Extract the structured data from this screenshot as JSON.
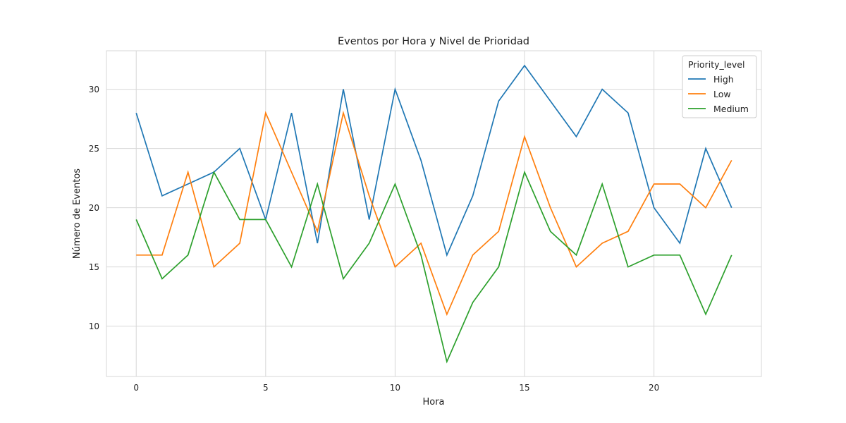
{
  "chart_data": {
    "type": "line",
    "title": "Eventos por Hora y Nivel de Prioridad",
    "xlabel": "Hora",
    "ylabel": "Número de Eventos",
    "x": [
      0,
      1,
      2,
      3,
      4,
      5,
      6,
      7,
      8,
      9,
      10,
      11,
      12,
      13,
      14,
      15,
      16,
      17,
      18,
      19,
      20,
      21,
      22,
      23
    ],
    "xlim": [
      -1.15,
      24.15
    ],
    "ylim": [
      5.75,
      33.25
    ],
    "xticks": [
      0,
      5,
      10,
      15,
      20
    ],
    "yticks": [
      10,
      15,
      20,
      25,
      30
    ],
    "grid": true,
    "legend": {
      "title": "Priority_level",
      "placement": "top-right"
    },
    "series": [
      {
        "name": "High",
        "color": "#1f77b4",
        "values": [
          28,
          21,
          22,
          23,
          25,
          19,
          28,
          17,
          30,
          19,
          30,
          24,
          16,
          21,
          29,
          32,
          29,
          26,
          30,
          28,
          20,
          17,
          25,
          20
        ]
      },
      {
        "name": "Low",
        "color": "#ff7f0e",
        "values": [
          16,
          16,
          23,
          15,
          17,
          28,
          23,
          18,
          28,
          21,
          15,
          17,
          11,
          16,
          18,
          26,
          20,
          15,
          17,
          18,
          22,
          22,
          20,
          24
        ]
      },
      {
        "name": "Medium",
        "color": "#2ca02c",
        "values": [
          19,
          14,
          16,
          23,
          19,
          19,
          15,
          22,
          14,
          17,
          22,
          16,
          7,
          12,
          15,
          23,
          18,
          16,
          22,
          15,
          16,
          16,
          11,
          16
        ]
      }
    ]
  }
}
